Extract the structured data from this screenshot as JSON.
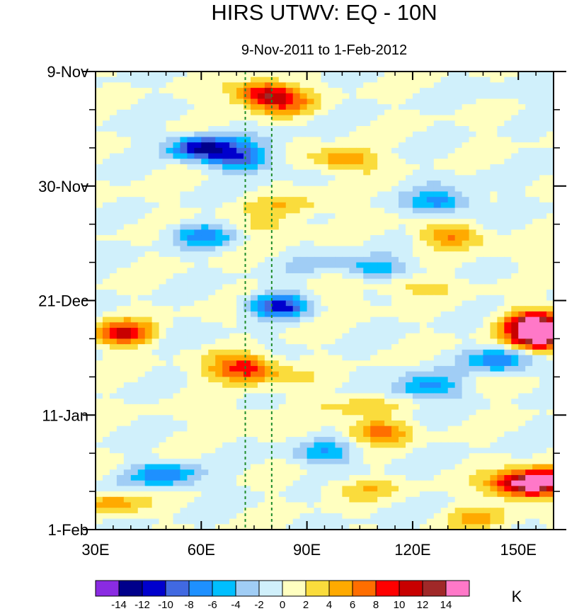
{
  "chart_data": {
    "type": "heatmap",
    "title": "HIRS UTWV: EQ - 10N",
    "subtitle": "9-Nov-2011 to 1-Feb-2012",
    "xlabel": "",
    "ylabel": "",
    "x_range": [
      30,
      160
    ],
    "y_range_days": [
      0,
      84
    ],
    "x_ticks": [
      {
        "value": 30,
        "label": "30E"
      },
      {
        "value": 60,
        "label": "60E"
      },
      {
        "value": 90,
        "label": "90E"
      },
      {
        "value": 120,
        "label": "120E"
      },
      {
        "value": 150,
        "label": "150E"
      }
    ],
    "y_ticks": [
      {
        "value": 0,
        "label": "9-Nov"
      },
      {
        "value": 21,
        "label": "30-Nov"
      },
      {
        "value": 42,
        "label": "21-Dec"
      },
      {
        "value": 63,
        "label": "11-Jan"
      },
      {
        "value": 84,
        "label": "1-Feb"
      }
    ],
    "reference_lines_lon": [
      72.5,
      80
    ],
    "colorbar": {
      "units": "K",
      "levels": [
        "-14",
        "-12",
        "-10",
        "-8",
        "-6",
        "-4",
        "-2",
        "0",
        "2",
        "4",
        "6",
        "8",
        "10",
        "12",
        "14"
      ],
      "colors": [
        "#8a2be2",
        "#00008b",
        "#0000cd",
        "#4169e1",
        "#1e90ff",
        "#00bfff",
        "#a0cdf5",
        "#d0f0fb",
        "#ffffc0",
        "#fadc3c",
        "#ffaa00",
        "#ff6e00",
        "#ff0000",
        "#c80000",
        "#a02828",
        "#ff78c8"
      ]
    },
    "anomaly_features": [
      {
        "lon": 78,
        "day": 4,
        "value": 11
      },
      {
        "lon": 83,
        "day": 6,
        "value": 5
      },
      {
        "lon": 60,
        "day": 14,
        "value": -12
      },
      {
        "lon": 72,
        "day": 16,
        "value": -9
      },
      {
        "lon": 100,
        "day": 16,
        "value": 7
      },
      {
        "lon": 128,
        "day": 24,
        "value": -7
      },
      {
        "lon": 60,
        "day": 30,
        "value": -6
      },
      {
        "lon": 130,
        "day": 30,
        "value": 6
      },
      {
        "lon": 110,
        "day": 36,
        "value": -5
      },
      {
        "lon": 82,
        "day": 43,
        "value": -11
      },
      {
        "lon": 38,
        "day": 48,
        "value": 10
      },
      {
        "lon": 72,
        "day": 54,
        "value": 9
      },
      {
        "lon": 155,
        "day": 46,
        "value": 13
      },
      {
        "lon": 156,
        "day": 49,
        "value": 15
      },
      {
        "lon": 145,
        "day": 53,
        "value": -9
      },
      {
        "lon": 125,
        "day": 57,
        "value": -5
      },
      {
        "lon": 50,
        "day": 74,
        "value": -8
      },
      {
        "lon": 95,
        "day": 70,
        "value": -6
      },
      {
        "lon": 110,
        "day": 66,
        "value": 7
      },
      {
        "lon": 150,
        "day": 76,
        "value": 10
      },
      {
        "lon": 157,
        "day": 75,
        "value": 14
      },
      {
        "lon": 35,
        "day": 79,
        "value": 6
      },
      {
        "lon": 140,
        "day": 82,
        "value": 4
      }
    ]
  }
}
